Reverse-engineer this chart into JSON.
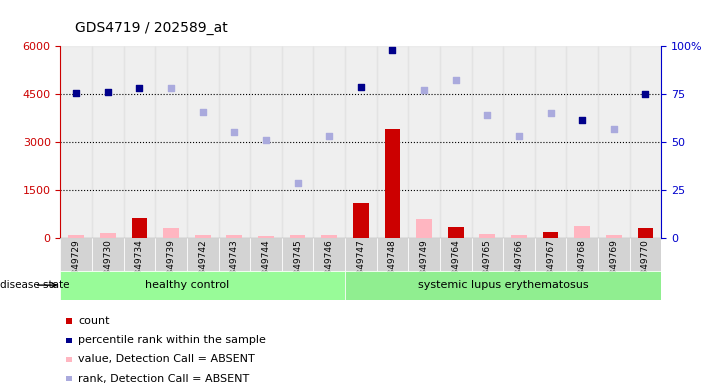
{
  "title": "GDS4719 / 202589_at",
  "samples": [
    "GSM349729",
    "GSM349730",
    "GSM349734",
    "GSM349739",
    "GSM349742",
    "GSM349743",
    "GSM349744",
    "GSM349745",
    "GSM349746",
    "GSM349747",
    "GSM349748",
    "GSM349749",
    "GSM349764",
    "GSM349765",
    "GSM349766",
    "GSM349767",
    "GSM349768",
    "GSM349769",
    "GSM349770"
  ],
  "count_values": [
    100,
    170,
    620,
    300,
    100,
    90,
    80,
    90,
    100,
    1100,
    3400,
    600,
    350,
    120,
    100,
    200,
    380,
    90,
    320
  ],
  "count_absent": [
    true,
    true,
    false,
    true,
    true,
    true,
    true,
    true,
    true,
    false,
    false,
    true,
    false,
    true,
    true,
    false,
    true,
    true,
    false
  ],
  "rank_values": [
    4520,
    4580,
    4680,
    4680,
    3950,
    3300,
    3050,
    1730,
    3180,
    4720,
    5880,
    4620,
    4950,
    3850,
    3200,
    3900,
    3700,
    3400,
    4500
  ],
  "rank_absent": [
    false,
    false,
    false,
    true,
    true,
    true,
    true,
    true,
    true,
    false,
    false,
    true,
    true,
    true,
    true,
    true,
    false,
    true,
    false
  ],
  "healthy_control_count": 9,
  "ylim_left": [
    0,
    6000
  ],
  "ylim_right": [
    0,
    100
  ],
  "yticks_left": [
    0,
    1500,
    3000,
    4500,
    6000
  ],
  "yticks_right": [
    0,
    25,
    50,
    75,
    100
  ],
  "group_labels": [
    "healthy control",
    "systemic lupus erythematosus"
  ],
  "bar_width": 0.5,
  "color_count_present": "#cc0000",
  "color_count_absent": "#ffb6c1",
  "color_rank_present": "#00008b",
  "color_rank_absent": "#aaaadd",
  "legend_items": [
    {
      "label": "count",
      "color": "#cc0000"
    },
    {
      "label": "percentile rank within the sample",
      "color": "#00008b"
    },
    {
      "label": "value, Detection Call = ABSENT",
      "color": "#ffb6c1"
    },
    {
      "label": "rank, Detection Call = ABSENT",
      "color": "#aaaadd"
    }
  ],
  "background_color": "#ffffff",
  "left_axis_color": "#cc0000",
  "right_axis_color": "#0000cc",
  "disease_state_label": "disease state"
}
